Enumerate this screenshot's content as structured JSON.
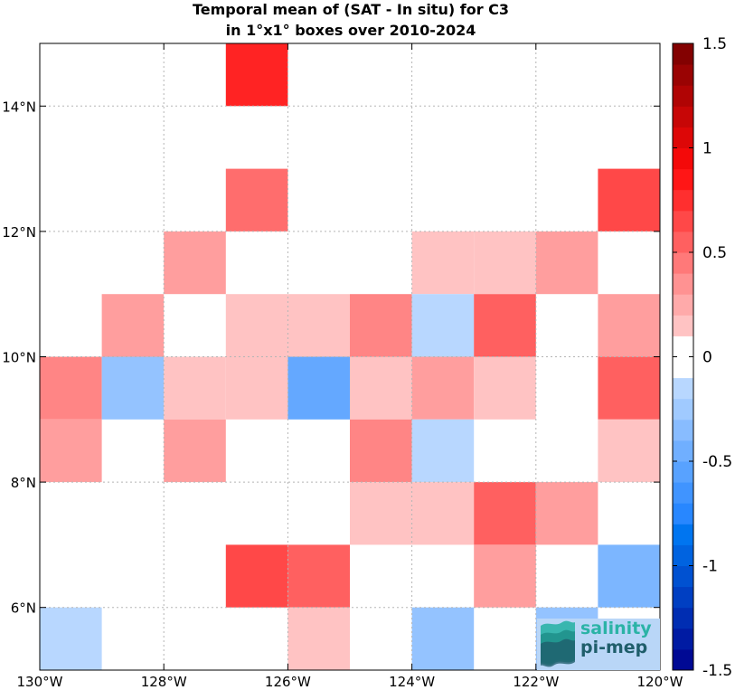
{
  "title": {
    "line1": "Temporal mean of (SAT - In situ) for C3",
    "line2": "in 1°x1° boxes over 2010-2024"
  },
  "map": {
    "lon_range": [
      -130,
      -120
    ],
    "lat_range": [
      5,
      15
    ],
    "x_ticks": [
      {
        "value": -130,
        "label": "130°W"
      },
      {
        "value": -128,
        "label": "128°W"
      },
      {
        "value": -126,
        "label": "126°W"
      },
      {
        "value": -124,
        "label": "124°W"
      },
      {
        "value": -122,
        "label": "122°W"
      },
      {
        "value": -120,
        "label": "120°W"
      }
    ],
    "y_ticks": [
      {
        "value": 6,
        "label": "6°N"
      },
      {
        "value": 8,
        "label": "8°N"
      },
      {
        "value": 10,
        "label": "10°N"
      },
      {
        "value": 12,
        "label": "12°N"
      },
      {
        "value": 14,
        "label": "14°N"
      }
    ],
    "grid": true
  },
  "chart_data": {
    "type": "heatmap",
    "x_unit": "degrees longitude",
    "y_unit": "degrees latitude",
    "cells": [
      {
        "lon": -127,
        "lat": 14,
        "value": 0.8
      },
      {
        "lon": -127,
        "lat": 12,
        "value": 0.5
      },
      {
        "lon": -121,
        "lat": 12,
        "value": 0.65
      },
      {
        "lon": -128,
        "lat": 11,
        "value": 0.3
      },
      {
        "lon": -124,
        "lat": 11,
        "value": 0.15
      },
      {
        "lon": -123,
        "lat": 11,
        "value": 0.15
      },
      {
        "lon": -122,
        "lat": 11,
        "value": 0.3
      },
      {
        "lon": -129,
        "lat": 10,
        "value": 0.3
      },
      {
        "lon": -127,
        "lat": 10,
        "value": 0.15
      },
      {
        "lon": -126,
        "lat": 10,
        "value": 0.15
      },
      {
        "lon": -125,
        "lat": 10,
        "value": 0.4
      },
      {
        "lon": -124,
        "lat": 10,
        "value": -0.15
      },
      {
        "lon": -123,
        "lat": 10,
        "value": 0.55
      },
      {
        "lon": -121,
        "lat": 10,
        "value": 0.3
      },
      {
        "lon": -130,
        "lat": 9,
        "value": 0.4
      },
      {
        "lon": -129,
        "lat": 9,
        "value": -0.3
      },
      {
        "lon": -128,
        "lat": 9,
        "value": 0.15
      },
      {
        "lon": -127,
        "lat": 9,
        "value": 0.15
      },
      {
        "lon": -126,
        "lat": 9,
        "value": -0.5
      },
      {
        "lon": -125,
        "lat": 9,
        "value": 0.15
      },
      {
        "lon": -124,
        "lat": 9,
        "value": 0.3
      },
      {
        "lon": -123,
        "lat": 9,
        "value": 0.15
      },
      {
        "lon": -121,
        "lat": 9,
        "value": 0.55
      },
      {
        "lon": -130,
        "lat": 8,
        "value": 0.3
      },
      {
        "lon": -128,
        "lat": 8,
        "value": 0.3
      },
      {
        "lon": -125,
        "lat": 8,
        "value": 0.4
      },
      {
        "lon": -124,
        "lat": 8,
        "value": -0.15
      },
      {
        "lon": -121,
        "lat": 8,
        "value": 0.15
      },
      {
        "lon": -125,
        "lat": 7,
        "value": 0.15
      },
      {
        "lon": -124,
        "lat": 7,
        "value": 0.15
      },
      {
        "lon": -123,
        "lat": 7,
        "value": 0.55
      },
      {
        "lon": -122,
        "lat": 7,
        "value": 0.3
      },
      {
        "lon": -127,
        "lat": 6,
        "value": 0.65
      },
      {
        "lon": -126,
        "lat": 6,
        "value": 0.55
      },
      {
        "lon": -123,
        "lat": 6,
        "value": 0.3
      },
      {
        "lon": -121,
        "lat": 6,
        "value": -0.4
      },
      {
        "lon": -130,
        "lat": 5,
        "value": -0.15
      },
      {
        "lon": -126,
        "lat": 5,
        "value": 0.15
      },
      {
        "lon": -124,
        "lat": 5,
        "value": -0.3
      },
      {
        "lon": -122,
        "lat": 5,
        "value": -0.3
      }
    ]
  },
  "colorbar": {
    "range": [
      -1.5,
      1.5
    ],
    "steps": 30,
    "ticks": [
      {
        "value": 1.5,
        "label": "1.5"
      },
      {
        "value": 1,
        "label": "1"
      },
      {
        "value": 0.5,
        "label": "0.5"
      },
      {
        "value": 0,
        "label": "0"
      },
      {
        "value": -0.5,
        "label": "-0.5"
      },
      {
        "value": -1,
        "label": "-1"
      },
      {
        "value": -1.5,
        "label": "-1.5"
      }
    ]
  },
  "logo": {
    "line1": "salinity",
    "line2": "pi-mep",
    "color1": "#2bb3a6",
    "color2": "#1f5e6b"
  }
}
